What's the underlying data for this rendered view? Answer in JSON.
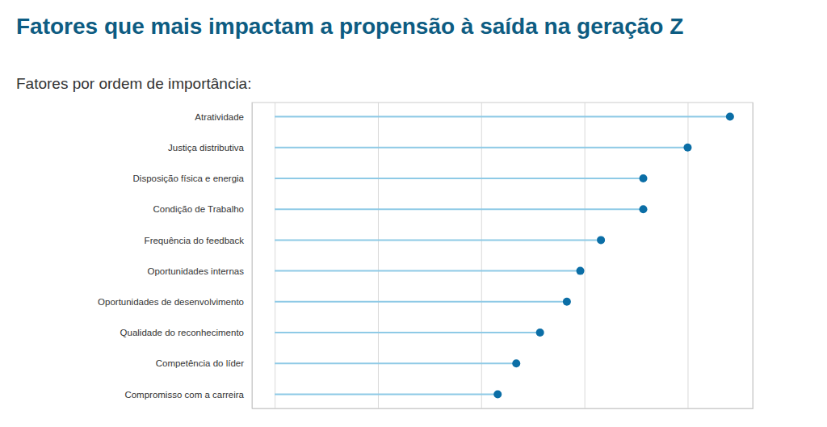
{
  "chart_data": {
    "type": "lollipop",
    "title": "Fatores que mais impactam a propensão à saída na geração Z",
    "subtitle": "Fatores por ordem de importância:",
    "orientation": "horizontal",
    "categories": [
      "Atratividade",
      "Justiça distributiva",
      "Disposição física e energia",
      "Condição de Trabalho",
      "Frequência do feedback",
      "Oportunidades internas",
      "Oportunidades de desenvolvimento",
      "Qualidade do reconhecimento",
      "Competência do líder",
      "Compromisso com a carreira"
    ],
    "values": [
      4.41,
      4.0,
      3.57,
      3.57,
      3.16,
      2.96,
      2.83,
      2.57,
      2.34,
      2.16
    ],
    "color": "#0b6ea6",
    "xlim": [
      -0.22,
      4.63
    ],
    "xticks": [
      0,
      1,
      2,
      3,
      4
    ],
    "grid": true,
    "tick_labels": "y"
  }
}
